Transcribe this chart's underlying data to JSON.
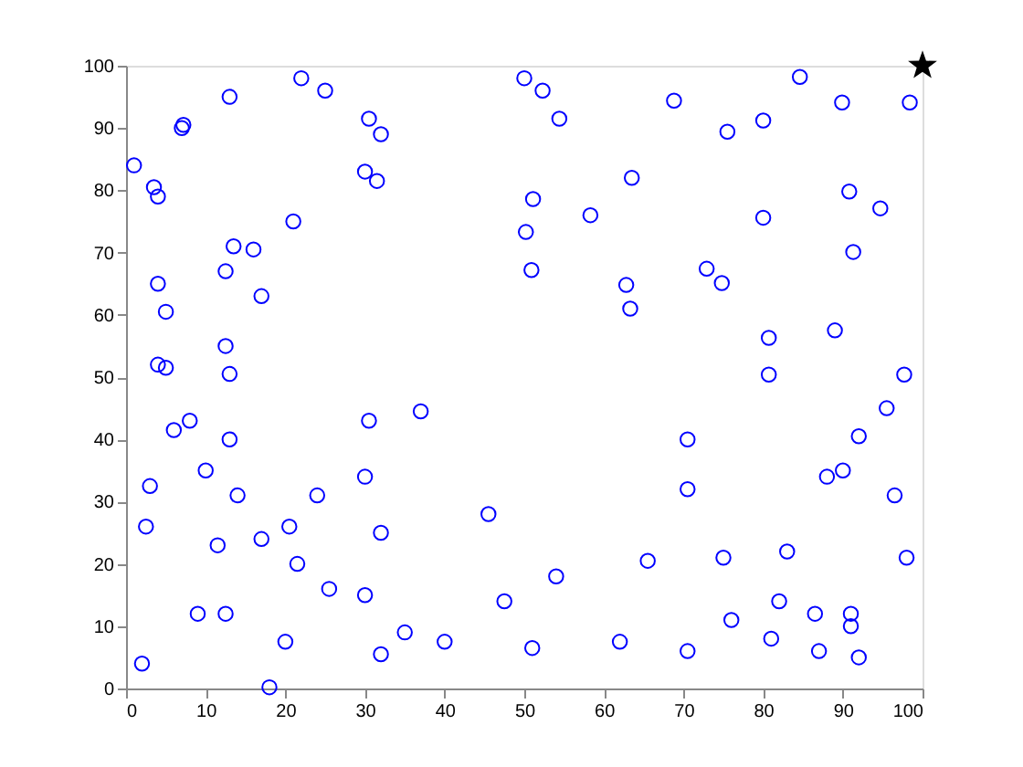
{
  "chart_data": {
    "type": "scatter",
    "xlim": [
      0,
      100
    ],
    "ylim": [
      0,
      100
    ],
    "xticks": [
      0,
      10,
      20,
      30,
      40,
      50,
      60,
      70,
      80,
      90,
      100
    ],
    "yticks": [
      0,
      10,
      20,
      30,
      40,
      50,
      60,
      70,
      80,
      90,
      100
    ],
    "grid": false,
    "series": [
      {
        "color": "#0000ff",
        "marker": "circle",
        "x": [
          1,
          3.5,
          4,
          7,
          7.2,
          13,
          22,
          25,
          30.5,
          32,
          30,
          31.5,
          21,
          13.5,
          16,
          12.5,
          17,
          4,
          5,
          4,
          5,
          13,
          12.5,
          6,
          8,
          13,
          10,
          3,
          2.5,
          14,
          11.5,
          17,
          20.5,
          21.5,
          24,
          30,
          30.5,
          37,
          32,
          25.5,
          30,
          9,
          12.5,
          20,
          2,
          18,
          32,
          35,
          40,
          45.5,
          47.5,
          50,
          52.3,
          54.4,
          68.8,
          75.5,
          80,
          84.6,
          89.9,
          98.4,
          63.5,
          51.1,
          58.3,
          80,
          90.8,
          94.7,
          50.2,
          91.3,
          50.9,
          62.8,
          72.9,
          74.8,
          63.3,
          80.7,
          89,
          80.7,
          97.7,
          70.5,
          70.5,
          95.5,
          92,
          90,
          88,
          96.5,
          98,
          75,
          65.5,
          54,
          51,
          62,
          70.5,
          76,
          81,
          82,
          83,
          86.5,
          87,
          91,
          91,
          92
        ],
        "values": [
          84,
          80.5,
          79,
          90,
          90.5,
          95,
          98,
          96,
          91.5,
          89,
          83,
          81.5,
          75,
          71,
          70.5,
          67,
          63,
          65,
          60.5,
          52,
          51.5,
          50.5,
          55,
          41.5,
          43,
          40,
          35,
          32.5,
          26,
          31,
          23,
          24,
          26,
          20,
          31,
          34,
          43,
          44.5,
          25,
          16,
          15,
          12,
          12,
          7.5,
          4,
          0.2,
          5.5,
          9,
          7.5,
          28,
          14,
          98,
          96,
          91.5,
          94.4,
          89.4,
          91.2,
          98.2,
          94.1,
          94.1,
          82,
          78.6,
          76,
          75.6,
          79.8,
          77.1,
          73.3,
          70.1,
          67.2,
          64.8,
          67.4,
          65.1,
          61,
          56.3,
          57.5,
          50.4,
          50.4,
          40,
          32,
          45,
          40.5,
          35,
          34,
          31,
          21,
          21,
          20.5,
          18,
          6.5,
          7.5,
          6,
          11,
          8,
          14,
          22,
          12,
          6,
          12,
          10,
          5
        ]
      },
      {
        "color": "#000000",
        "marker": "star",
        "x": [
          100
        ],
        "values": [
          100
        ]
      }
    ]
  }
}
